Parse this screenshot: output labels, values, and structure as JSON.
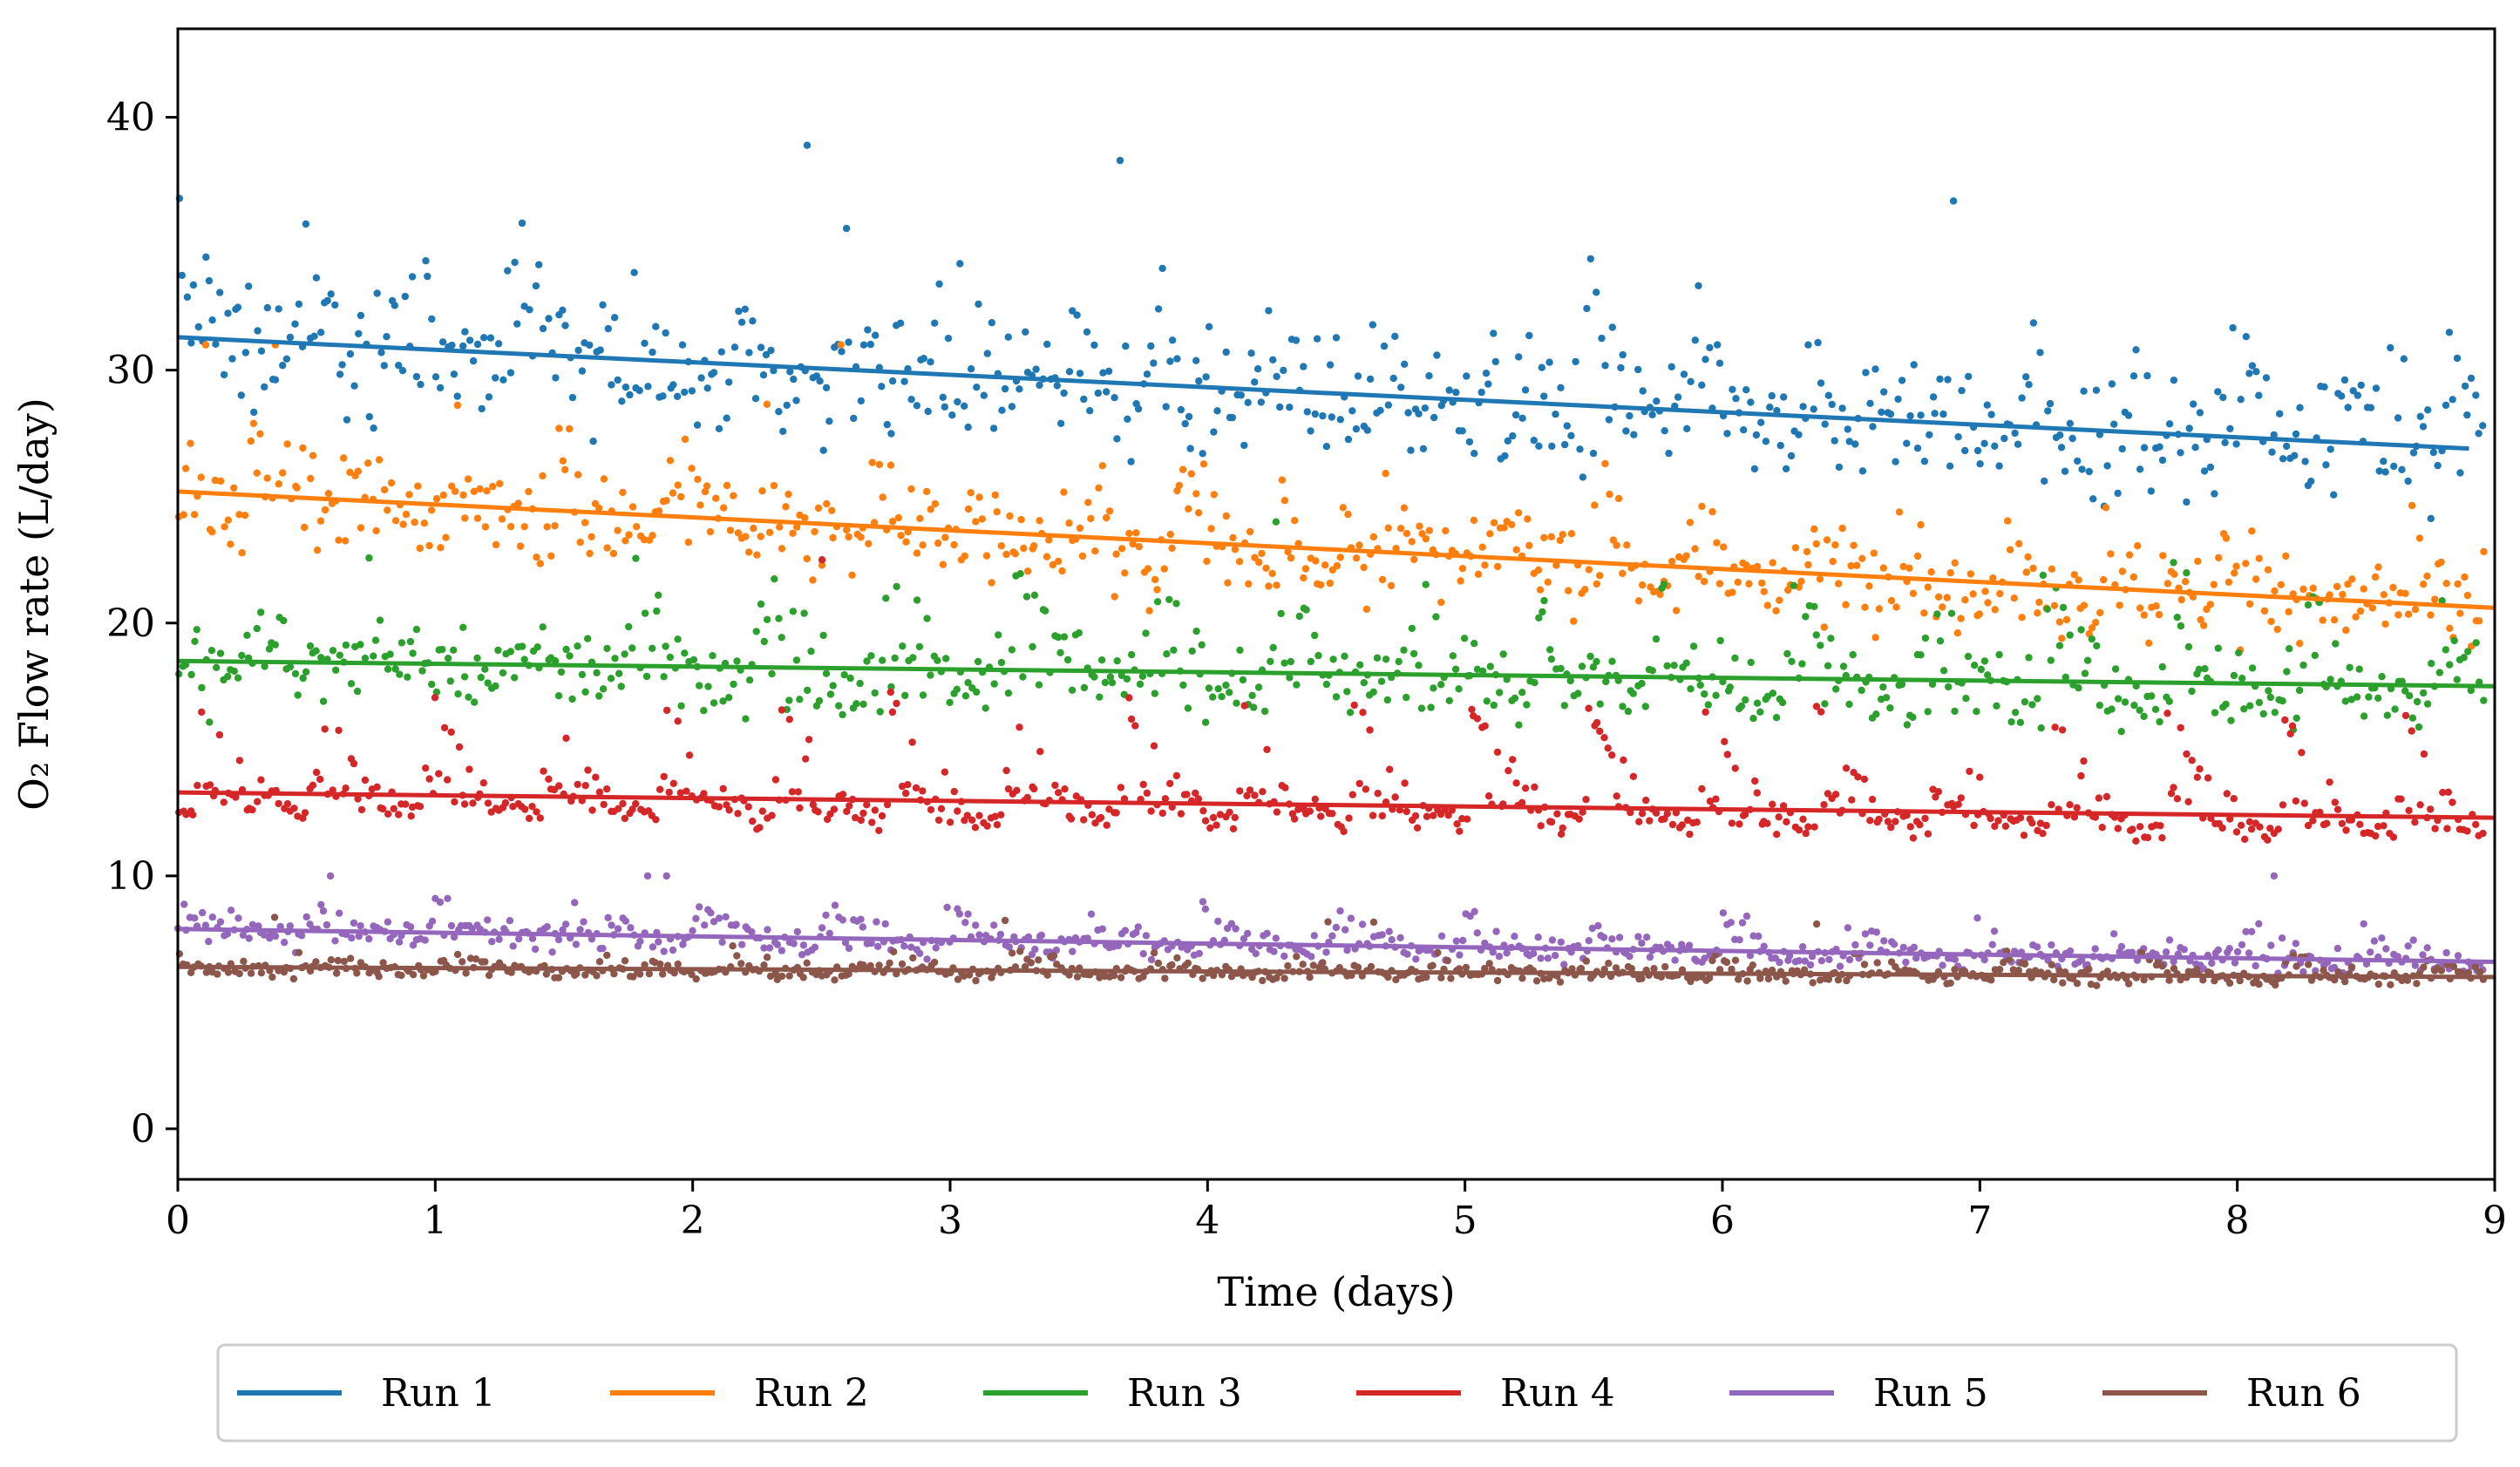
{
  "chart_data": {
    "type": "scatter",
    "title": "",
    "xlabel": "Time (days)",
    "ylabel": "O₂ Flow rate (L/day)",
    "xlim": [
      0,
      9
    ],
    "ylim": [
      -2,
      43.5
    ],
    "xticks": [
      0,
      1,
      2,
      3,
      4,
      5,
      6,
      7,
      8,
      9
    ],
    "yticks": [
      0,
      10,
      20,
      30,
      40
    ],
    "xtick_labels": [
      "0",
      "1",
      "2",
      "3",
      "4",
      "5",
      "6",
      "7",
      "8",
      "9"
    ],
    "ytick_labels": [
      "0",
      "10",
      "20",
      "30",
      "40"
    ],
    "grid": false,
    "legend_position": "bottom-center",
    "series": [
      {
        "name": "Run 1",
        "color": "#1f77b4",
        "trend": [
          [
            0,
            31.3
          ],
          [
            8.9,
            26.9
          ]
        ],
        "noise": 2.6,
        "sawtooth": 4.0,
        "period": 0.42,
        "outlier_max": 41.3
      },
      {
        "name": "Run 2",
        "color": "#ff7f0e",
        "trend": [
          [
            0,
            25.2
          ],
          [
            9,
            20.6
          ]
        ],
        "noise": 1.8,
        "sawtooth": 3.5,
        "period": 0.4,
        "outlier_max": 31.0
      },
      {
        "name": "Run 3",
        "color": "#2ca02c",
        "trend": [
          [
            0,
            18.5
          ],
          [
            9,
            17.5
          ]
        ],
        "noise": 1.4,
        "sawtooth": 4.5,
        "period": 0.5,
        "outlier_max": 24.0
      },
      {
        "name": "Run 4",
        "color": "#d62728",
        "trend": [
          [
            0,
            13.3
          ],
          [
            9,
            12.3
          ]
        ],
        "noise": 0.55,
        "sawtooth": 5.0,
        "period": 0.45,
        "outlier_max": 22.5
      },
      {
        "name": "Run 5",
        "color": "#9467bd",
        "trend": [
          [
            0,
            7.9
          ],
          [
            9,
            6.6
          ]
        ],
        "noise": 0.5,
        "sawtooth": 1.6,
        "period": 0.5,
        "outlier_max": 10.0
      },
      {
        "name": "Run 6",
        "color": "#8c564b",
        "trend": [
          [
            0,
            6.4
          ],
          [
            9,
            6.0
          ]
        ],
        "noise": 0.3,
        "sawtooth": 0.9,
        "period": 0.55,
        "outlier_max": 10.5
      }
    ]
  }
}
